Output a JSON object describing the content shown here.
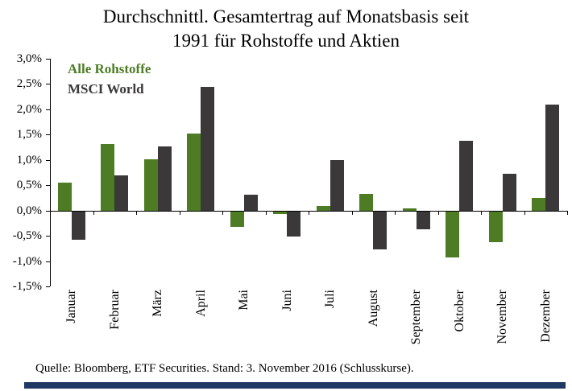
{
  "title": {
    "line1": "Durchschnittl. Gesamtertrag auf Monatsbasis seit",
    "line2": "1991 für Rohstoffe und Aktien"
  },
  "legend": [
    {
      "label": "Alle Rohstoffe",
      "color": "#4d7c24"
    },
    {
      "label": "MSCI World",
      "color": "#3a3838"
    }
  ],
  "source": "Quelle: Bloomberg, ETF Securities. Stand: 3. November 2016 (Schlusskurse).",
  "colors": {
    "rohstoffe_bar": "#4d7c24",
    "msci_bar": "#3a3838",
    "axis": "#000000",
    "footer_bar": "#1f3864"
  },
  "chart_data": {
    "type": "bar",
    "title": "Durchschnittl. Gesamtertrag auf Monatsbasis seit 1991 für Rohstoffe und Aktien",
    "categories": [
      "Januar",
      "Februar",
      "März",
      "April",
      "Mai",
      "Juni",
      "Juli",
      "August",
      "September",
      "Oktober",
      "November",
      "Dezember"
    ],
    "series": [
      {
        "name": "Alle Rohstoffe",
        "color": "#4d7c24",
        "values": [
          0.55,
          1.32,
          1.02,
          1.52,
          -0.3,
          -0.05,
          0.1,
          0.33,
          0.05,
          -0.9,
          -0.6,
          0.25
        ]
      },
      {
        "name": "MSCI World",
        "color": "#3a3838",
        "values": [
          -0.55,
          0.7,
          1.28,
          2.45,
          0.32,
          -0.5,
          1.0,
          -0.75,
          -0.35,
          1.38,
          0.73,
          2.1
        ]
      }
    ],
    "ylim": [
      -1.5,
      3.0
    ],
    "ytick_step": 0.5,
    "ytick_labels": [
      "3,0%",
      "2,5%",
      "2,0%",
      "1,5%",
      "1,0%",
      "0,5%",
      "0,0%",
      "-0,5%",
      "-1,0%",
      "-1,5%"
    ],
    "xlabel": "",
    "ylabel": "",
    "grid": false,
    "legend_position": "top-left"
  }
}
